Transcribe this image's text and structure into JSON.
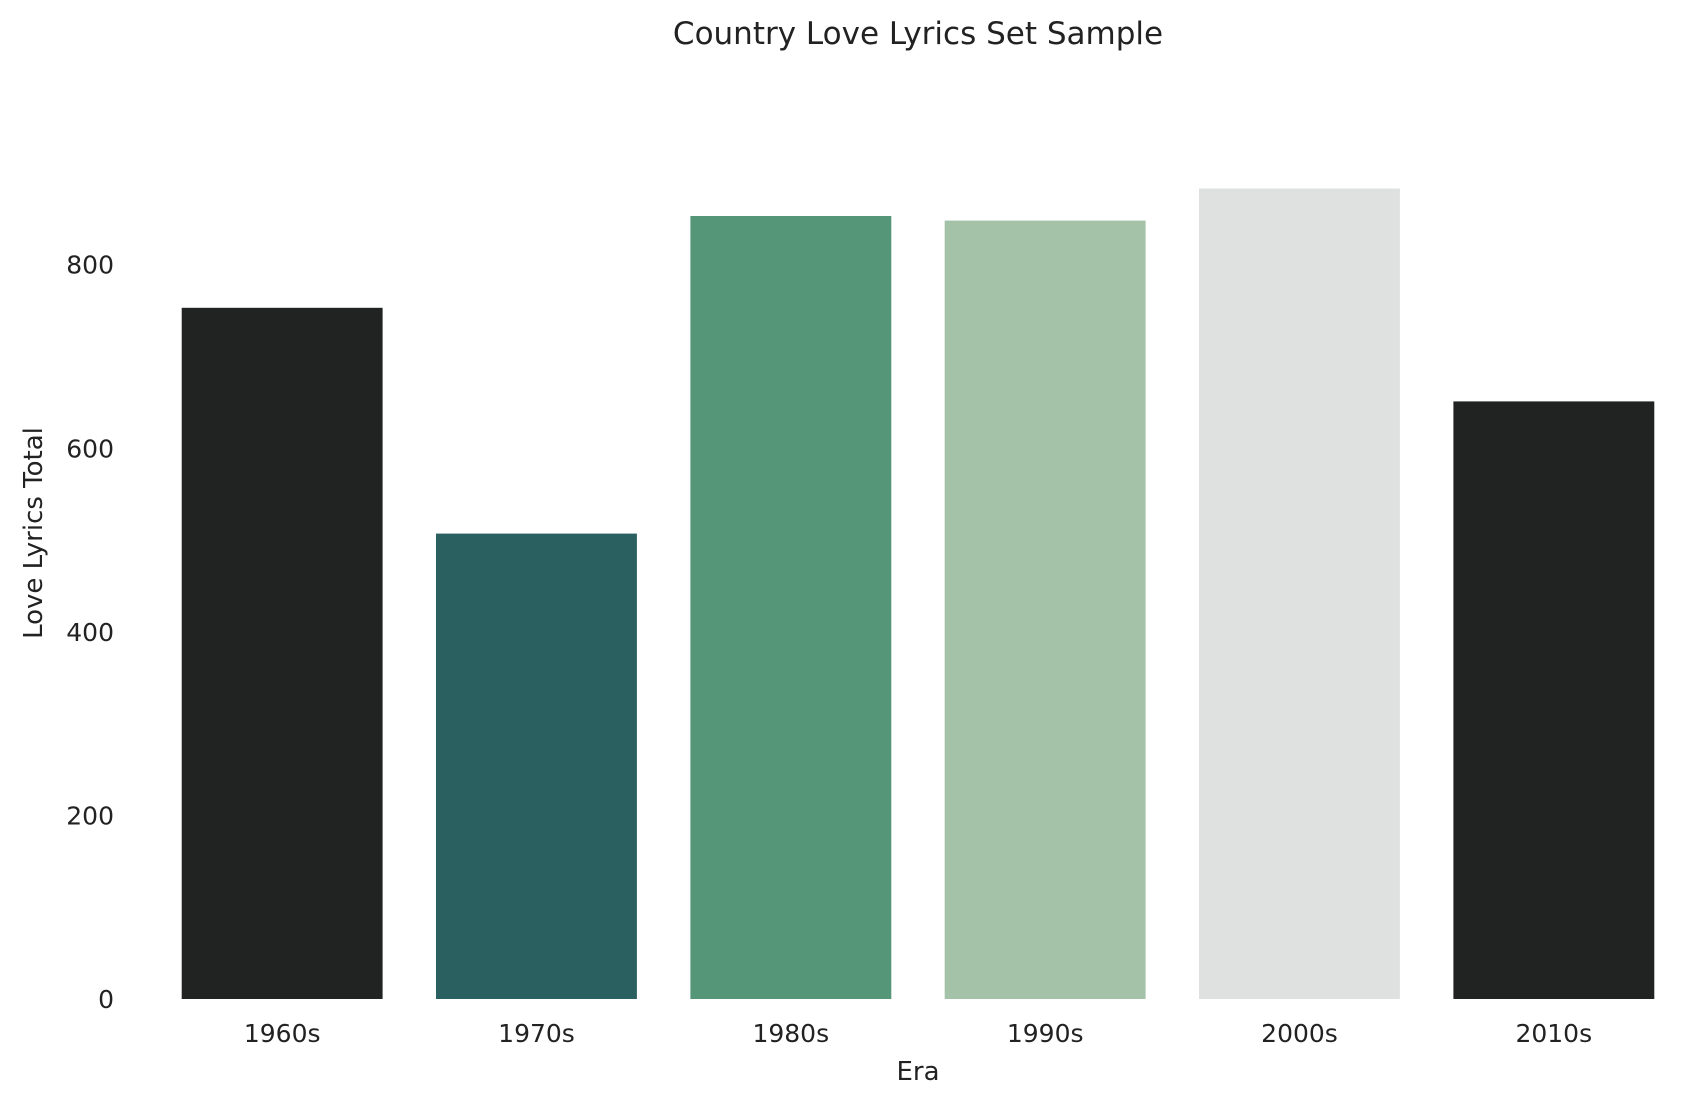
{
  "chart_data": {
    "type": "bar",
    "title": "Country Love Lyrics Set Sample",
    "xlabel": "Era",
    "ylabel": "Love Lyrics Total",
    "categories": [
      "1960s",
      "1970s",
      "1980s",
      "1990s",
      "2000s",
      "2010s"
    ],
    "values": [
      753,
      507,
      853,
      848,
      883,
      651
    ],
    "colors": [
      "#212322",
      "#2a6060",
      "#559679",
      "#a3c2a7",
      "#dfe1e0",
      "#212322"
    ],
    "ylim": [
      0,
      900
    ],
    "yticks": [
      0,
      200,
      400,
      600,
      800
    ],
    "ytick_labels": [
      "0",
      "200",
      "400",
      "600",
      "800"
    ],
    "grid": false,
    "legend": "none"
  }
}
